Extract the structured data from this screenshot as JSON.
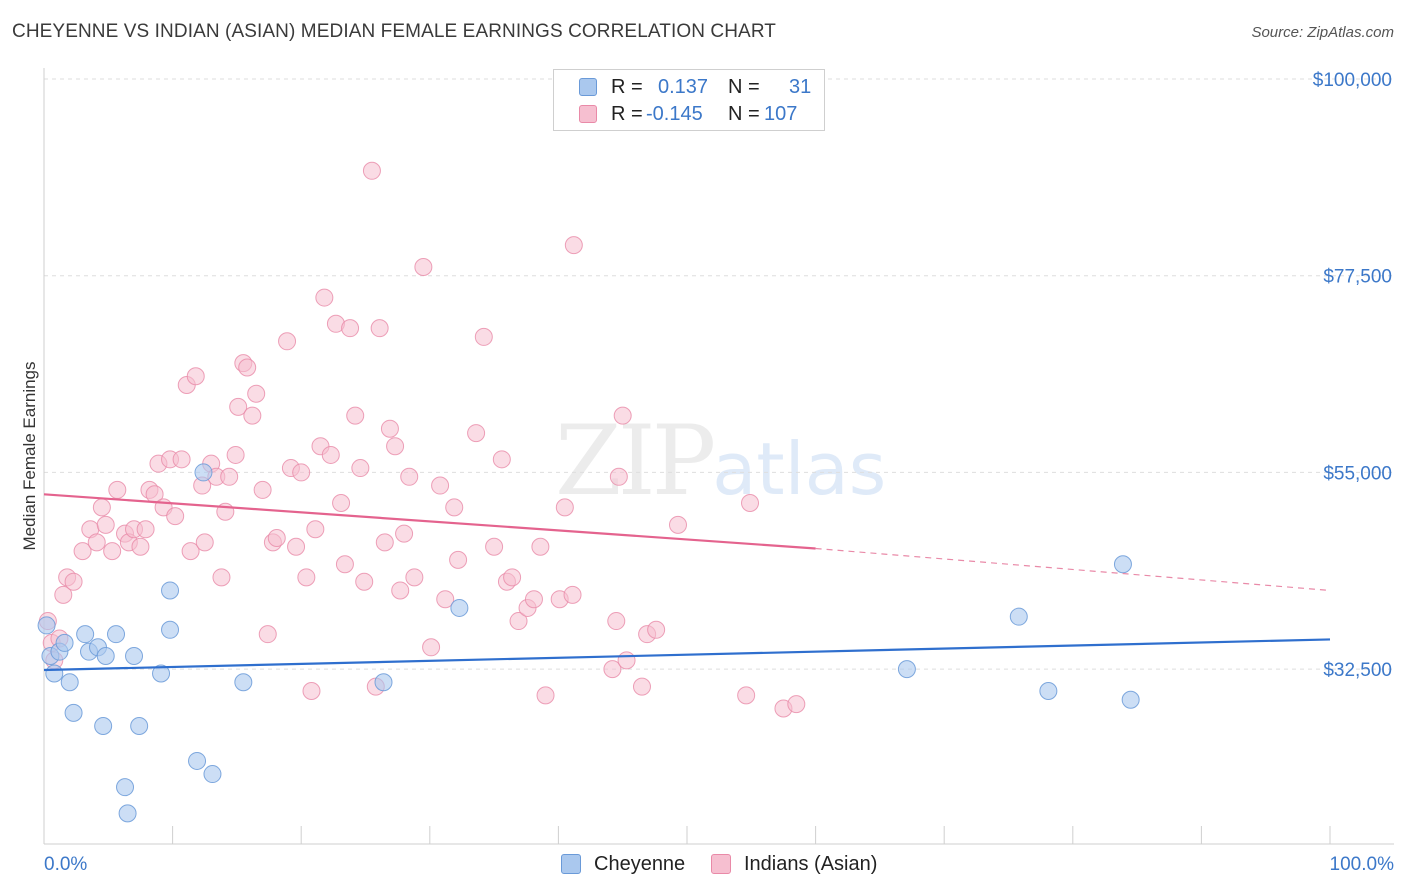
{
  "title": "CHEYENNE VS INDIAN (ASIAN) MEDIAN FEMALE EARNINGS CORRELATION CHART",
  "source": "Source: ZipAtlas.com",
  "watermark": {
    "zip": "ZIP",
    "atlas": "atlas"
  },
  "legend": {
    "rows": [
      {
        "r_label": "R =",
        "r_value": "0.137",
        "n_label": "N =",
        "n_value": "31",
        "color": "#aac8ee",
        "stroke": "#6a9ad8"
      },
      {
        "r_label": "R =",
        "r_value": "-0.145",
        "n_label": "N =",
        "n_value": "107",
        "color": "#f6bfd0",
        "stroke": "#e98aa8"
      }
    ]
  },
  "bottom_legend": [
    {
      "label": "Cheyenne",
      "color": "#aac8ee",
      "stroke": "#6a9ad8"
    },
    {
      "label": "Indians (Asian)",
      "color": "#f6bfd0",
      "stroke": "#e98aa8"
    }
  ],
  "chart_data": {
    "type": "scatter",
    "title": "CHEYENNE VS INDIAN (ASIAN) MEDIAN FEMALE EARNINGS CORRELATION CHART",
    "xlabel": "",
    "ylabel": "Median Female Earnings",
    "xlim": [
      0,
      100
    ],
    "ylim": [
      12500,
      100000
    ],
    "x_tick_labels": [
      "0.0%",
      "100.0%"
    ],
    "y_ticks": [
      32500,
      55000,
      77500,
      100000
    ],
    "y_tick_labels": [
      "$32,500",
      "$55,000",
      "$77,500",
      "$100,000"
    ],
    "grid": true,
    "series": [
      {
        "name": "Cheyenne",
        "color": "#6a9ad8",
        "fill": "#aac8ee",
        "trend": {
          "x": [
            0,
            100
          ],
          "y": [
            32400,
            35900
          ]
        },
        "points": [
          [
            0.2,
            37.5
          ],
          [
            0.5,
            34.0
          ],
          [
            0.8,
            32.0
          ],
          [
            1.2,
            34.5
          ],
          [
            1.6,
            35.5
          ],
          [
            2.0,
            31.0
          ],
          [
            2.3,
            27.5
          ],
          [
            3.2,
            36.5
          ],
          [
            3.5,
            34.5
          ],
          [
            4.2,
            35.0
          ],
          [
            4.6,
            26.0
          ],
          [
            4.8,
            34.0
          ],
          [
            5.6,
            36.5
          ],
          [
            6.3,
            19.0
          ],
          [
            6.5,
            16.0
          ],
          [
            7.0,
            34.0
          ],
          [
            7.4,
            26.0
          ],
          [
            9.1,
            32.0
          ],
          [
            9.8,
            41.5
          ],
          [
            9.8,
            37.0
          ],
          [
            11.9,
            22.0
          ],
          [
            12.4,
            55.0
          ],
          [
            13.1,
            20.5
          ],
          [
            15.5,
            31.0
          ],
          [
            26.4,
            31.0
          ],
          [
            32.3,
            39.5
          ],
          [
            67.1,
            32.5
          ],
          [
            75.8,
            38.5
          ],
          [
            78.1,
            30.0
          ],
          [
            83.9,
            44.5
          ],
          [
            84.5,
            29.0
          ]
        ]
      },
      {
        "name": "Indians (Asian)",
        "color": "#e98aa8",
        "fill": "#f6bfd0",
        "trend": {
          "x": [
            0,
            60
          ],
          "y": [
            52500,
            46300
          ]
        },
        "trend_dashed": {
          "x": [
            60,
            100
          ],
          "y": [
            46300,
            41500
          ]
        },
        "points": [
          [
            0.3,
            38.0
          ],
          [
            0.6,
            35.5
          ],
          [
            0.8,
            33.5
          ],
          [
            1.2,
            36.0
          ],
          [
            1.5,
            41.0
          ],
          [
            1.8,
            43.0
          ],
          [
            2.3,
            42.5
          ],
          [
            3.0,
            46.0
          ],
          [
            3.6,
            48.5
          ],
          [
            4.1,
            47.0
          ],
          [
            4.5,
            51.0
          ],
          [
            4.8,
            49.0
          ],
          [
            5.3,
            46.0
          ],
          [
            5.7,
            53.0
          ],
          [
            6.3,
            48.0
          ],
          [
            6.6,
            47.0
          ],
          [
            7.0,
            48.5
          ],
          [
            7.5,
            46.5
          ],
          [
            7.9,
            48.5
          ],
          [
            8.2,
            53.0
          ],
          [
            8.6,
            52.5
          ],
          [
            8.9,
            56.0
          ],
          [
            9.3,
            51.0
          ],
          [
            9.8,
            56.5
          ],
          [
            10.2,
            50.0
          ],
          [
            10.7,
            56.5
          ],
          [
            11.1,
            65.0
          ],
          [
            11.4,
            46.0
          ],
          [
            11.8,
            66.0
          ],
          [
            12.3,
            53.5
          ],
          [
            12.5,
            47.0
          ],
          [
            13.0,
            56.0
          ],
          [
            13.4,
            54.5
          ],
          [
            13.8,
            43.0
          ],
          [
            14.1,
            50.5
          ],
          [
            14.4,
            54.5
          ],
          [
            14.9,
            57.0
          ],
          [
            15.1,
            62.5
          ],
          [
            15.5,
            67.5
          ],
          [
            15.8,
            67.0
          ],
          [
            16.2,
            61.5
          ],
          [
            16.5,
            64.0
          ],
          [
            17.0,
            53.0
          ],
          [
            17.4,
            36.5
          ],
          [
            17.8,
            47.0
          ],
          [
            18.1,
            47.5
          ],
          [
            18.9,
            70.0
          ],
          [
            19.2,
            55.5
          ],
          [
            19.6,
            46.5
          ],
          [
            20.0,
            55.0
          ],
          [
            20.4,
            43.0
          ],
          [
            20.8,
            30.0
          ],
          [
            21.1,
            48.5
          ],
          [
            21.5,
            58.0
          ],
          [
            21.8,
            75.0
          ],
          [
            22.3,
            57.0
          ],
          [
            22.7,
            72.0
          ],
          [
            23.1,
            51.5
          ],
          [
            23.4,
            44.5
          ],
          [
            23.8,
            71.5
          ],
          [
            24.2,
            61.5
          ],
          [
            24.6,
            55.5
          ],
          [
            24.9,
            42.5
          ],
          [
            25.5,
            89.5
          ],
          [
            25.8,
            30.5
          ],
          [
            26.1,
            71.5
          ],
          [
            26.5,
            47.0
          ],
          [
            26.9,
            60.0
          ],
          [
            27.3,
            58.0
          ],
          [
            27.7,
            41.5
          ],
          [
            28.0,
            48.0
          ],
          [
            28.4,
            54.5
          ],
          [
            28.8,
            43.0
          ],
          [
            29.5,
            78.5
          ],
          [
            30.1,
            35.0
          ],
          [
            30.8,
            53.5
          ],
          [
            31.2,
            40.5
          ],
          [
            31.9,
            51.0
          ],
          [
            32.2,
            45.0
          ],
          [
            33.6,
            59.5
          ],
          [
            34.2,
            70.5
          ],
          [
            35.0,
            46.5
          ],
          [
            35.6,
            56.5
          ],
          [
            36.0,
            42.5
          ],
          [
            36.4,
            43.0
          ],
          [
            36.9,
            38.0
          ],
          [
            37.6,
            39.5
          ],
          [
            38.1,
            40.5
          ],
          [
            38.6,
            46.5
          ],
          [
            39.0,
            29.5
          ],
          [
            40.1,
            40.5
          ],
          [
            40.5,
            51.0
          ],
          [
            41.1,
            41.0
          ],
          [
            41.2,
            81.0
          ],
          [
            44.2,
            32.5
          ],
          [
            44.5,
            38.0
          ],
          [
            44.7,
            54.5
          ],
          [
            45.0,
            61.5
          ],
          [
            45.3,
            33.5
          ],
          [
            46.5,
            30.5
          ],
          [
            46.9,
            36.5
          ],
          [
            47.6,
            37.0
          ],
          [
            49.3,
            49.0
          ],
          [
            54.6,
            29.5
          ],
          [
            54.9,
            51.5
          ],
          [
            57.5,
            28.0
          ],
          [
            58.5,
            28.5
          ]
        ]
      }
    ],
    "points_units": {
      "x": "percent",
      "y": "thousands of dollars"
    }
  }
}
